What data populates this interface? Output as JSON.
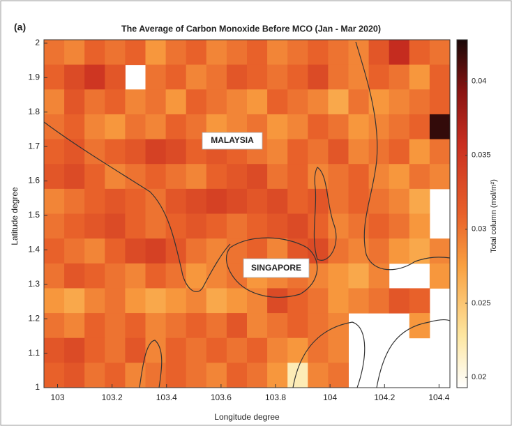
{
  "chart_data": {
    "type": "heatmap",
    "title": "The Average of Carbon Monoxide Before MCO (Jan - Mar 2020)",
    "panel_label": "(a)",
    "x_label": "Longitude degree",
    "y_label": "Latitude degree",
    "colorbar_label": "Total column (mol/m²)",
    "annotations": [
      "MALAYSIA",
      "SINGAPORE"
    ],
    "xlim": [
      102.95,
      104.44
    ],
    "ylim": [
      1,
      2.01
    ],
    "xticks": [
      103,
      103.2,
      103.4,
      103.6,
      103.8,
      104,
      104.2,
      104.4
    ],
    "yticks": [
      1,
      1.1,
      1.2,
      1.3,
      1.4,
      1.5,
      1.6,
      1.7,
      1.8,
      1.9,
      2
    ],
    "clim": [
      0.0193,
      0.0428
    ],
    "cticks": [
      0.02,
      0.025,
      0.03,
      0.035,
      0.04
    ],
    "z": [
      [
        0.03,
        0.029,
        0.031,
        0.03,
        0.031,
        0.028,
        0.03,
        0.031,
        0.029,
        0.03,
        0.031,
        0.029,
        0.03,
        0.031,
        0.03,
        0.029,
        0.032,
        0.036,
        0.031,
        0.03
      ],
      [
        0.031,
        0.033,
        0.035,
        0.032,
        null,
        0.03,
        0.031,
        0.029,
        0.03,
        0.032,
        0.031,
        0.03,
        0.031,
        0.033,
        0.03,
        0.029,
        0.031,
        0.03,
        0.028,
        0.031
      ],
      [
        0.029,
        0.032,
        0.03,
        0.031,
        0.029,
        0.03,
        0.028,
        0.031,
        0.03,
        0.029,
        0.028,
        0.031,
        0.03,
        0.029,
        0.027,
        0.03,
        0.028,
        0.029,
        0.03,
        0.031
      ],
      [
        0.03,
        0.031,
        0.029,
        0.028,
        0.03,
        0.029,
        0.031,
        0.03,
        0.028,
        0.029,
        0.03,
        0.028,
        0.029,
        0.031,
        0.03,
        0.028,
        0.029,
        0.03,
        0.031,
        0.042
      ],
      [
        0.031,
        0.032,
        0.03,
        0.031,
        0.032,
        0.034,
        0.033,
        0.031,
        0.032,
        0.031,
        0.03,
        0.029,
        0.031,
        0.03,
        0.032,
        0.029,
        0.03,
        0.031,
        0.028,
        0.03
      ],
      [
        0.032,
        0.033,
        0.031,
        0.029,
        0.03,
        0.031,
        0.03,
        0.029,
        0.031,
        0.032,
        0.033,
        0.03,
        0.031,
        0.029,
        0.03,
        0.031,
        0.029,
        0.028,
        0.03,
        0.029
      ],
      [
        0.029,
        0.03,
        0.031,
        0.032,
        0.031,
        0.03,
        0.032,
        0.033,
        0.034,
        0.033,
        0.032,
        0.033,
        0.031,
        0.032,
        0.03,
        0.031,
        0.03,
        0.029,
        0.027,
        null
      ],
      [
        0.03,
        0.031,
        0.032,
        0.033,
        0.031,
        0.03,
        0.031,
        0.032,
        0.031,
        0.03,
        0.031,
        0.032,
        0.033,
        0.031,
        0.029,
        0.03,
        0.031,
        0.03,
        0.028,
        null
      ],
      [
        0.031,
        0.03,
        0.029,
        0.031,
        0.033,
        0.034,
        0.032,
        0.03,
        0.029,
        0.03,
        0.031,
        0.029,
        0.032,
        0.033,
        0.03,
        0.029,
        0.03,
        0.028,
        0.027,
        0.029
      ],
      [
        0.03,
        0.032,
        0.031,
        0.03,
        0.029,
        0.031,
        0.03,
        0.028,
        0.029,
        0.03,
        0.028,
        0.029,
        0.03,
        0.029,
        0.028,
        0.027,
        0.029,
        null,
        null,
        0.028
      ],
      [
        0.028,
        0.027,
        0.029,
        0.03,
        0.028,
        0.027,
        0.028,
        0.029,
        0.027,
        0.028,
        0.029,
        0.033,
        0.031,
        0.03,
        0.028,
        0.029,
        0.03,
        0.032,
        0.031,
        null
      ],
      [
        0.03,
        0.029,
        0.031,
        0.03,
        0.031,
        0.029,
        0.03,
        0.031,
        0.03,
        0.032,
        0.029,
        0.03,
        0.031,
        0.03,
        0.029,
        null,
        null,
        null,
        0.028,
        null
      ],
      [
        0.032,
        0.033,
        0.031,
        0.03,
        0.032,
        0.029,
        0.031,
        0.03,
        0.031,
        0.03,
        0.031,
        0.029,
        0.028,
        0.03,
        0.029,
        null,
        null,
        null,
        null,
        null
      ],
      [
        0.031,
        0.032,
        0.03,
        0.031,
        0.029,
        0.03,
        0.031,
        0.03,
        0.029,
        0.031,
        0.03,
        0.028,
        0.022,
        0.029,
        0.03,
        null,
        null,
        null,
        null,
        null
      ]
    ]
  }
}
